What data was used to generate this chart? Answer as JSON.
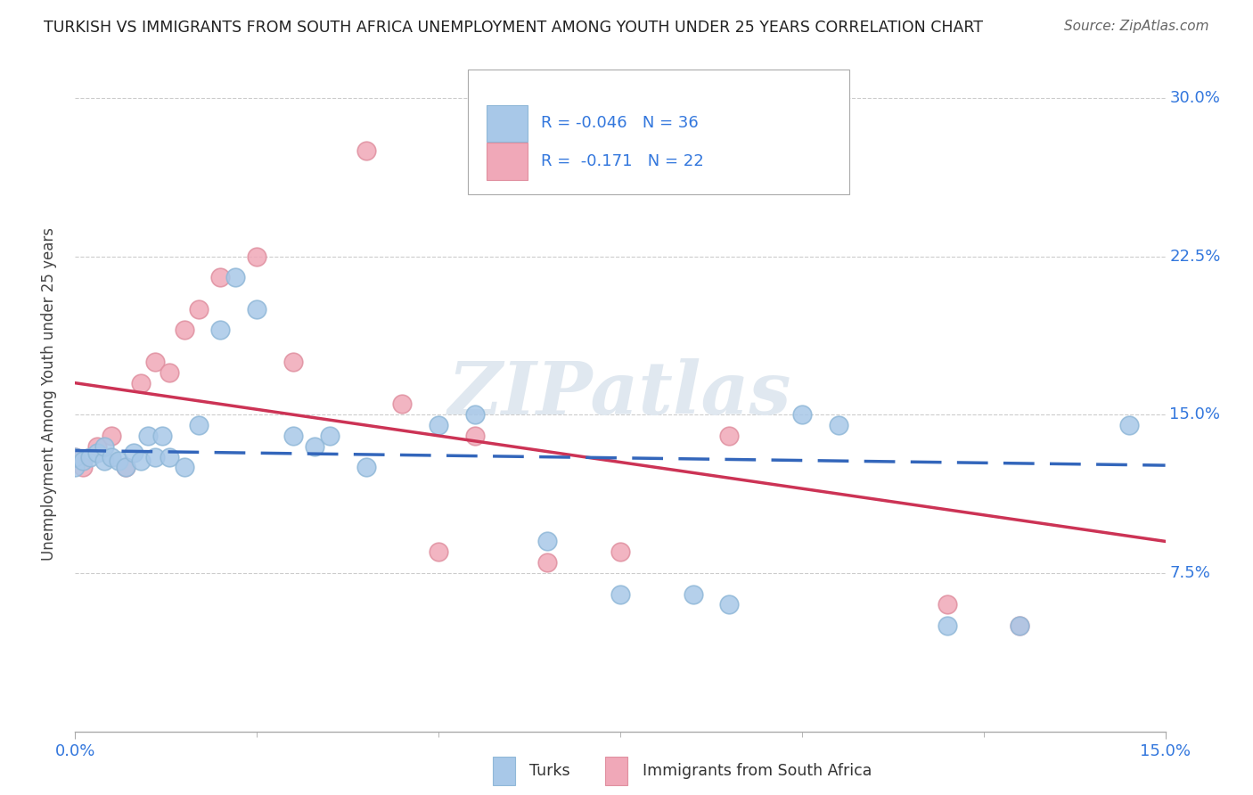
{
  "title": "TURKISH VS IMMIGRANTS FROM SOUTH AFRICA UNEMPLOYMENT AMONG YOUTH UNDER 25 YEARS CORRELATION CHART",
  "source": "Source: ZipAtlas.com",
  "ylabel": "Unemployment Among Youth under 25 years",
  "xlim": [
    0.0,
    0.15
  ],
  "ylim": [
    0.0,
    0.32
  ],
  "turks_R": "-0.046",
  "turks_N": "36",
  "sa_R": "-0.171",
  "sa_N": "22",
  "turks_color": "#a8c8e8",
  "sa_color": "#f0a8b8",
  "turks_edge_color": "#90b8d8",
  "sa_edge_color": "#e090a0",
  "turks_line_color": "#3366bb",
  "sa_line_color": "#cc3355",
  "legend_text_color": "#3377dd",
  "axis_label_color": "#3377dd",
  "title_color": "#222222",
  "source_color": "#666666",
  "ylabel_color": "#444444",
  "background_color": "#ffffff",
  "grid_color": "#cccccc",
  "watermark_color": "#e0e8f0",
  "turks_x": [
    0.0,
    0.0,
    0.001,
    0.002,
    0.003,
    0.004,
    0.004,
    0.005,
    0.006,
    0.007,
    0.008,
    0.009,
    0.01,
    0.011,
    0.012,
    0.013,
    0.015,
    0.017,
    0.02,
    0.022,
    0.025,
    0.03,
    0.033,
    0.035,
    0.04,
    0.05,
    0.055,
    0.065,
    0.075,
    0.085,
    0.09,
    0.1,
    0.105,
    0.12,
    0.13,
    0.145
  ],
  "turks_y": [
    0.125,
    0.13,
    0.128,
    0.13,
    0.132,
    0.128,
    0.135,
    0.13,
    0.128,
    0.125,
    0.132,
    0.128,
    0.14,
    0.13,
    0.14,
    0.13,
    0.125,
    0.145,
    0.19,
    0.215,
    0.2,
    0.14,
    0.135,
    0.14,
    0.125,
    0.145,
    0.15,
    0.09,
    0.065,
    0.065,
    0.06,
    0.15,
    0.145,
    0.05,
    0.05,
    0.145
  ],
  "sa_x": [
    0.0,
    0.001,
    0.003,
    0.005,
    0.007,
    0.009,
    0.011,
    0.013,
    0.015,
    0.017,
    0.02,
    0.025,
    0.03,
    0.04,
    0.045,
    0.05,
    0.055,
    0.065,
    0.075,
    0.09,
    0.12,
    0.13
  ],
  "sa_y": [
    0.13,
    0.125,
    0.135,
    0.14,
    0.125,
    0.165,
    0.175,
    0.17,
    0.19,
    0.2,
    0.215,
    0.225,
    0.175,
    0.275,
    0.155,
    0.085,
    0.14,
    0.08,
    0.085,
    0.14,
    0.06,
    0.05
  ],
  "turks_line_x0": 0.0,
  "turks_line_y0": 0.133,
  "turks_line_x1": 0.15,
  "turks_line_y1": 0.126,
  "sa_line_x0": 0.0,
  "sa_line_y0": 0.165,
  "sa_line_x1": 0.15,
  "sa_line_y1": 0.09
}
